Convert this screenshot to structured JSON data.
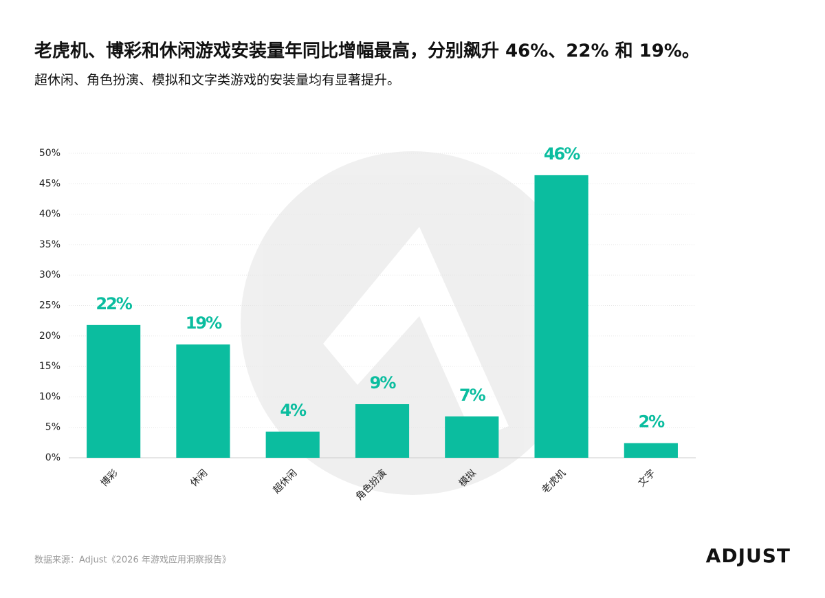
{
  "chart_data": {
    "type": "bar",
    "title": "老虎机、博彩和休闲游戏安装量年同比增幅最高，分别飙升 46%、22% 和 19%。",
    "subtitle": "超休闲、角色扮演、模拟和文字类游戏的安装量均有显著提升。",
    "categories": [
      "博彩",
      "休闲",
      "超休闲",
      "角色扮演",
      "模拟",
      "老虎机",
      "文字"
    ],
    "values": [
      21.8,
      18.6,
      4.3,
      8.8,
      6.8,
      46.4,
      2.4
    ],
    "value_labels": [
      "22%",
      "19%",
      "4%",
      "9%",
      "7%",
      "46%",
      "2%"
    ],
    "color": "#0bbd9f",
    "ylim": [
      0,
      50
    ],
    "yticks": [
      {
        "value": 0,
        "label": "0%"
      },
      {
        "value": 5,
        "label": "5%"
      },
      {
        "value": 10,
        "label": "10%"
      },
      {
        "value": 15,
        "label": "15%"
      },
      {
        "value": 20,
        "label": "20%"
      },
      {
        "value": 25,
        "label": "25%"
      },
      {
        "value": 30,
        "label": "30%"
      },
      {
        "value": 35,
        "label": "35%"
      },
      {
        "value": 40,
        "label": "40%"
      },
      {
        "value": 45,
        "label": "45%"
      },
      {
        "value": 50,
        "label": "50%"
      }
    ],
    "grid": true,
    "source": "数据来源：Adjust《2026 年游戏应用洞察报告》",
    "logo": "ADJUST"
  }
}
